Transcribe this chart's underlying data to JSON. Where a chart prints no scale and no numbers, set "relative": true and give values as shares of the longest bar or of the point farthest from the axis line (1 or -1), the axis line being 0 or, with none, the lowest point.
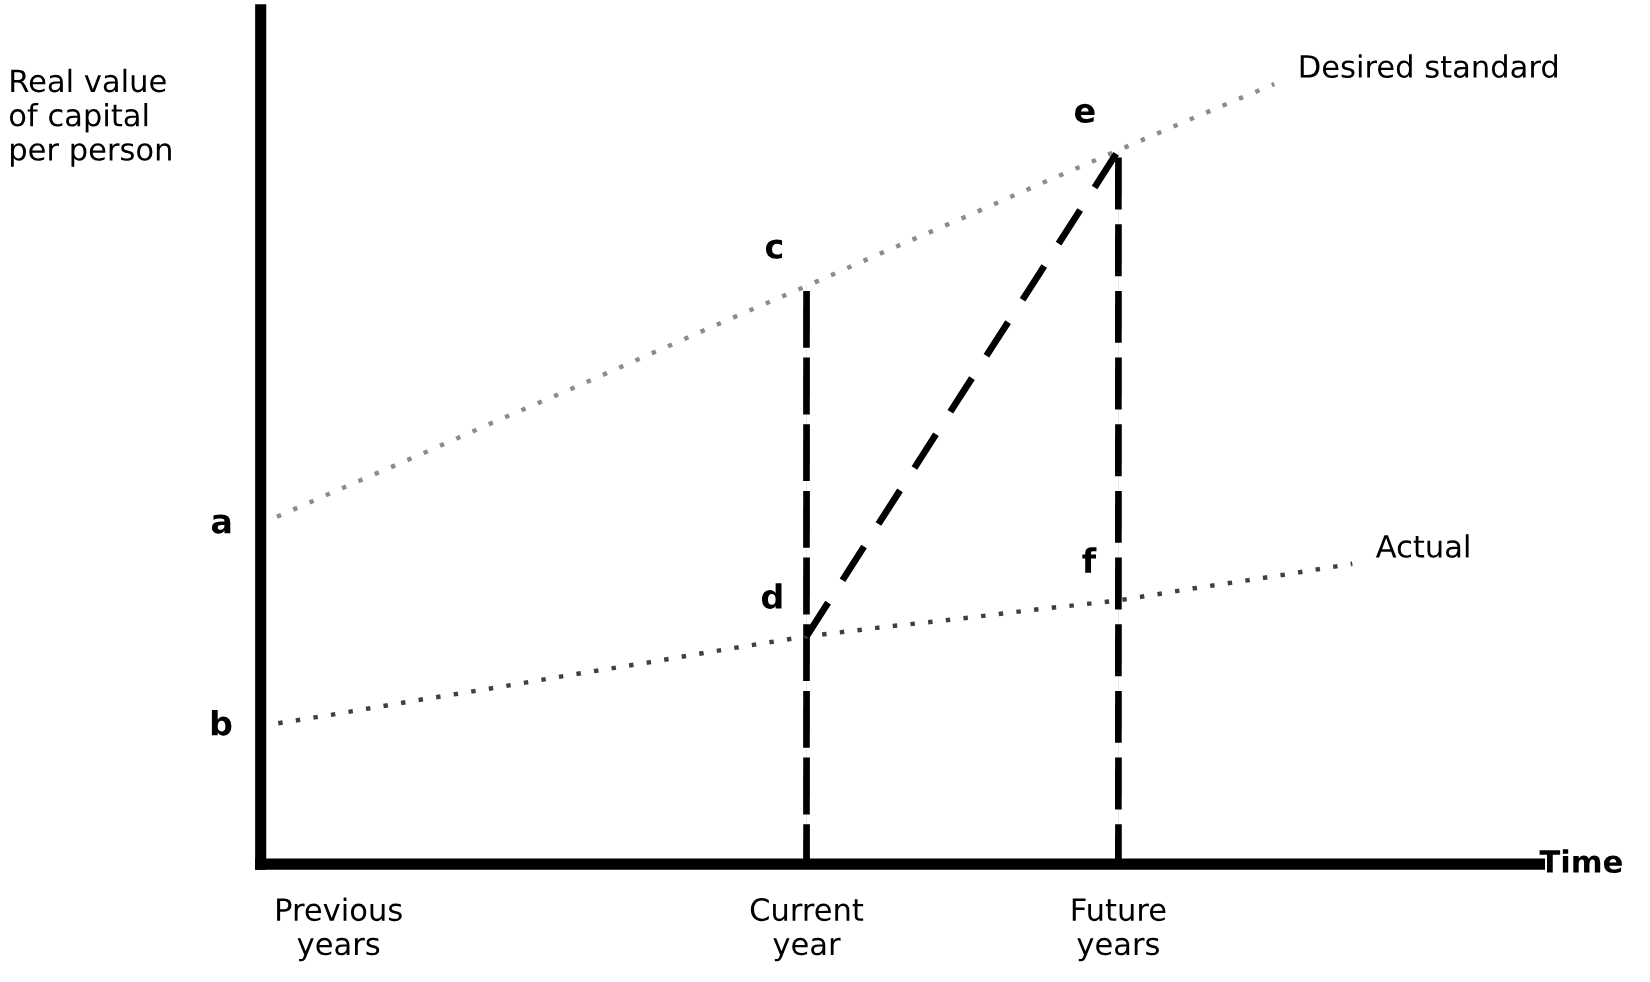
{
  "chart_data": {
    "type": "line",
    "relative": true,
    "xlabel": "Time",
    "ylabel": "Real value\nof capital\nper person",
    "categories": [
      null,
      "Previous\nyears",
      null,
      null,
      null,
      null,
      null,
      "Current\nyear",
      null,
      null,
      null,
      "Future\nyears",
      null,
      null,
      null,
      null,
      null
    ],
    "legend": false,
    "marker": "none",
    "series": [
      {
        "name": "Desired standard",
        "color": "#8c8c8c",
        "line_style": "dotted",
        "values": [
          0.436,
          0.48,
          0.523,
          0.567,
          0.61,
          0.654,
          0.698,
          0.741,
          0.785,
          0.828,
          0.872,
          0.915,
          0.958,
          1.0,
          null,
          null,
          null
        ]
      },
      {
        "name": "Actual",
        "color": "#404040",
        "line_style": "dotted",
        "values": [
          0.177,
          0.193,
          0.21,
          0.226,
          0.243,
          0.259,
          0.276,
          0.292,
          0.304,
          0.315,
          0.327,
          0.338,
          0.354,
          0.369,
          0.385,
          null,
          null
        ]
      },
      {
        "type": "bar",
        "color": "#000000",
        "line_style": "dashed",
        "values": [
          null,
          null,
          null,
          null,
          null,
          null,
          null,
          0.741,
          null,
          null,
          null,
          0.915,
          null,
          null,
          null,
          null,
          null
        ]
      },
      {
        "color": "#000000",
        "line_style": "dashed",
        "values": [
          null,
          null,
          null,
          null,
          null,
          null,
          null,
          0.292,
          0.448,
          0.604,
          0.759,
          0.915,
          null,
          null,
          null,
          null,
          null
        ]
      }
    ],
    "annotations": [
      "a",
      "b",
      {
        "text": "c",
        "x": "Current\nyear",
        "y": 0.741
      },
      {
        "text": "d",
        "x": "Current\nyear",
        "y": 0.292
      },
      {
        "text": "e",
        "x": "Future\nyears",
        "y": 0.915
      },
      {
        "text": "f",
        "x": "Future\nyears",
        "y": 0.338
      }
    ]
  }
}
